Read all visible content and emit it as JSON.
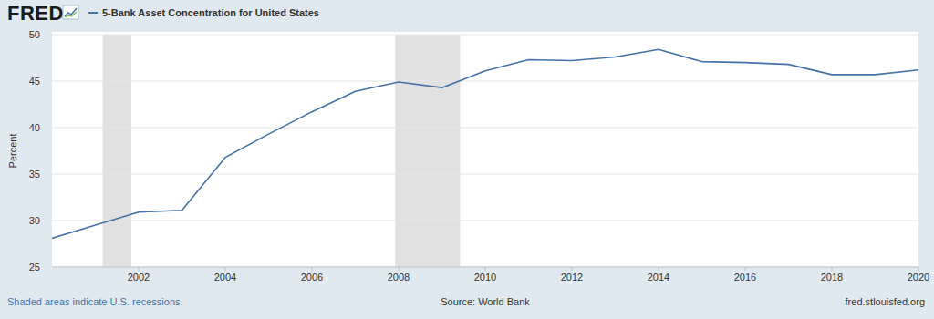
{
  "chart_data": {
    "type": "line",
    "logo": "FRED",
    "y_label": "Percent",
    "note": "Shaded areas indicate U.S. recessions.",
    "source": "Source: World Bank",
    "site": "fred.stlouisfed.org",
    "x": [
      2000,
      2001,
      2002,
      2003,
      2004,
      2005,
      2006,
      2007,
      2008,
      2009,
      2010,
      2011,
      2012,
      2013,
      2014,
      2015,
      2016,
      2017,
      2018,
      2019,
      2020
    ],
    "series": [
      {
        "name": "5-Bank Asset Concentration for United States",
        "color": "#4572a7",
        "values": [
          28.1,
          29.5,
          30.9,
          31.1,
          36.8,
          39.3,
          41.7,
          43.9,
          44.9,
          44.3,
          46.1,
          47.3,
          47.2,
          47.6,
          48.4,
          47.1,
          47.0,
          46.8,
          45.7,
          45.7,
          46.2
        ]
      }
    ],
    "recessions": [
      {
        "start": 2001.17,
        "end": 2001.83
      },
      {
        "start": 2007.92,
        "end": 2009.42
      }
    ],
    "xlim": [
      2000,
      2020
    ],
    "xticks": [
      2002,
      2004,
      2006,
      2008,
      2010,
      2012,
      2014,
      2016,
      2018,
      2020
    ],
    "ylim": [
      25,
      50
    ],
    "yticks": [
      25,
      30,
      35,
      40,
      45,
      50
    ],
    "grid": true
  }
}
